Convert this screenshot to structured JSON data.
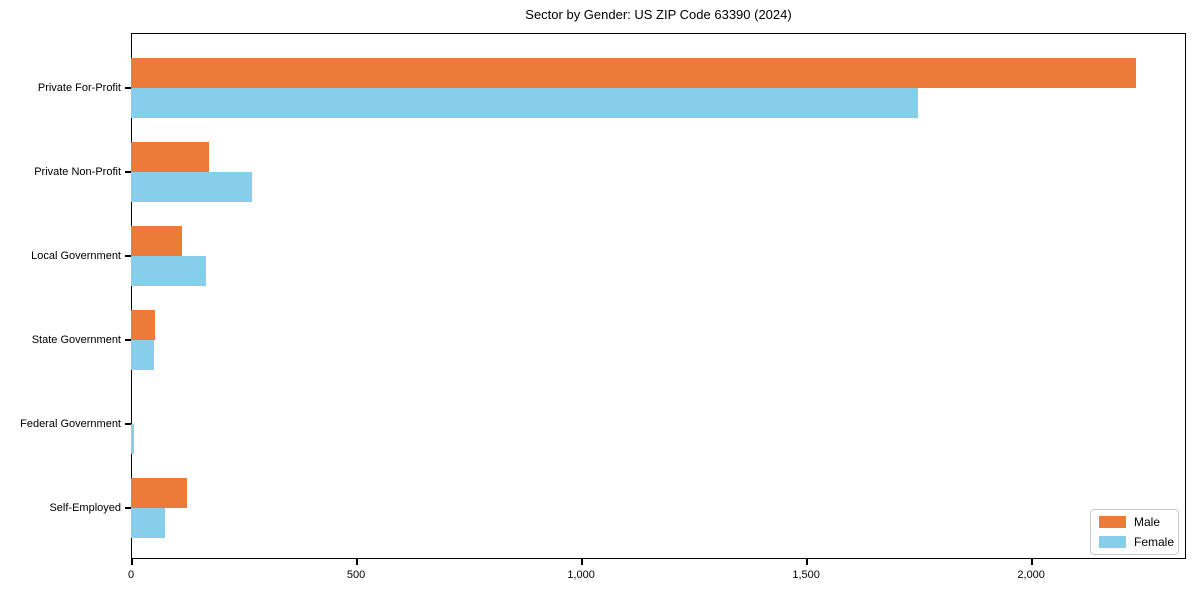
{
  "title": "Sector by Gender: US ZIP Code 63390 (2024)",
  "colors": {
    "male": "#EC7A39",
    "female": "#87CEEB",
    "axis": "#000000",
    "legend_border": "#CCCCCC",
    "background": "#FFFFFF"
  },
  "legend": {
    "position": "lower right",
    "items": [
      {
        "label": "Male"
      },
      {
        "label": "Female"
      }
    ]
  },
  "chart_data": {
    "type": "bar",
    "orientation": "horizontal",
    "title": "Sector by Gender: US ZIP Code 63390 (2024)",
    "xlabel": "",
    "ylabel": "",
    "categories": [
      "Private For-Profit",
      "Private Non-Profit",
      "Local Government",
      "State Government",
      "Federal Government",
      "Self-Employed"
    ],
    "series": [
      {
        "name": "Male",
        "color": "#EC7A39",
        "values": [
          2232,
          173,
          113,
          53,
          0,
          124
        ]
      },
      {
        "name": "Female",
        "color": "#87CEEB",
        "values": [
          1748,
          268,
          167,
          52,
          6,
          76
        ]
      }
    ],
    "xlim": [
      0,
      2344
    ],
    "xticks": {
      "values": [
        0,
        500,
        1000,
        1500,
        2000
      ],
      "labels": [
        "0",
        "500",
        "1,000",
        "1,500",
        "2,000"
      ]
    },
    "grid": false,
    "legend_position": "lower right"
  }
}
